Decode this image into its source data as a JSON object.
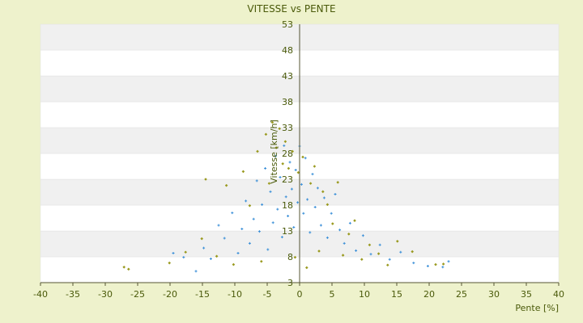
{
  "chart_data": {
    "type": "scatter",
    "title": "VITESSE vs PENTE",
    "xlabel": "Pente [%]",
    "ylabel": "Vitesse [km/h]",
    "xlim": [
      -40,
      40
    ],
    "ylim": [
      3,
      53
    ],
    "xticks": [
      -40,
      -35,
      -30,
      -25,
      -20,
      -15,
      -10,
      -5,
      0,
      5,
      10,
      15,
      20,
      25,
      30,
      35,
      40
    ],
    "yticks": [
      3,
      8,
      13,
      18,
      23,
      28,
      33,
      38,
      43,
      48,
      53
    ],
    "grid": "horizontal alternating bands",
    "colors": {
      "background": "#eef2cc",
      "band_light": "#ffffff",
      "band_dark": "#f0f0f0",
      "axis": "#555533",
      "text": "#4a5a0a",
      "series_blue": "#3a8fd8",
      "series_olive": "#9a9a20"
    },
    "series": [
      {
        "color": "#3a8fd8",
        "marker": "plus",
        "points": [
          [
            -19.5,
            8.7
          ],
          [
            -17.9,
            7.9
          ],
          [
            -16.0,
            5.2
          ],
          [
            -14.8,
            9.7
          ],
          [
            -13.7,
            7.6
          ],
          [
            -12.5,
            14.1
          ],
          [
            -11.6,
            11.6
          ],
          [
            -10.4,
            16.5
          ],
          [
            -9.5,
            8.7
          ],
          [
            -8.9,
            13.4
          ],
          [
            -8.3,
            18.8
          ],
          [
            -7.7,
            10.6
          ],
          [
            -7.1,
            15.3
          ],
          [
            -6.6,
            22.7
          ],
          [
            -6.2,
            12.9
          ],
          [
            -5.8,
            18.1
          ],
          [
            -5.3,
            25.1
          ],
          [
            -4.9,
            9.4
          ],
          [
            -4.5,
            20.6
          ],
          [
            -4.1,
            14.6
          ],
          [
            -3.7,
            27.5
          ],
          [
            -3.4,
            17.2
          ],
          [
            -3.0,
            23.4
          ],
          [
            -2.7,
            11.8
          ],
          [
            -2.4,
            29.5
          ],
          [
            -2.1,
            19.6
          ],
          [
            -1.8,
            15.9
          ],
          [
            -1.5,
            26.3
          ],
          [
            -1.2,
            21.1
          ],
          [
            -0.9,
            13.7
          ],
          [
            -0.6,
            24.8
          ],
          [
            -0.3,
            18.5
          ],
          [
            0.0,
            29.4
          ],
          [
            0.3,
            22.0
          ],
          [
            0.6,
            16.4
          ],
          [
            0.9,
            27.1
          ],
          [
            1.2,
            19.1
          ],
          [
            1.6,
            12.7
          ],
          [
            2.0,
            24.0
          ],
          [
            2.4,
            17.6
          ],
          [
            2.8,
            21.3
          ],
          [
            3.3,
            14.1
          ],
          [
            3.8,
            19.4
          ],
          [
            4.3,
            11.7
          ],
          [
            4.9,
            16.4
          ],
          [
            5.5,
            20.1
          ],
          [
            6.2,
            13.2
          ],
          [
            6.9,
            10.6
          ],
          [
            7.8,
            14.5
          ],
          [
            8.7,
            9.2
          ],
          [
            9.8,
            12.1
          ],
          [
            11.0,
            8.5
          ],
          [
            12.4,
            10.3
          ],
          [
            13.9,
            7.5
          ],
          [
            15.6,
            8.9
          ],
          [
            17.6,
            6.8
          ],
          [
            19.8,
            6.2
          ],
          [
            22.1,
            6.0
          ],
          [
            23.0,
            7.1
          ]
        ]
      },
      {
        "color": "#9a9a20",
        "marker": "diamond",
        "points": [
          [
            -27.1,
            6.0
          ],
          [
            -26.4,
            5.6
          ],
          [
            -20.1,
            6.8
          ],
          [
            -17.6,
            8.9
          ],
          [
            -15.1,
            11.5
          ],
          [
            -14.5,
            23.0
          ],
          [
            -12.8,
            8.1
          ],
          [
            -11.3,
            21.8
          ],
          [
            -10.2,
            6.5
          ],
          [
            -8.7,
            24.5
          ],
          [
            -7.7,
            17.9
          ],
          [
            -6.5,
            28.4
          ],
          [
            -5.9,
            7.1
          ],
          [
            -5.2,
            31.7
          ],
          [
            -4.7,
            22.2
          ],
          [
            -4.2,
            34.0
          ],
          [
            -3.6,
            29.1
          ],
          [
            -3.1,
            32.8
          ],
          [
            -2.6,
            26.0
          ],
          [
            -2.2,
            30.3
          ],
          [
            -1.7,
            25.1
          ],
          [
            -1.1,
            28.4
          ],
          [
            -0.7,
            7.9
          ],
          [
            -0.2,
            24.3
          ],
          [
            0.5,
            27.3
          ],
          [
            1.1,
            5.9
          ],
          [
            1.7,
            22.2
          ],
          [
            2.3,
            25.5
          ],
          [
            3.0,
            9.1
          ],
          [
            3.6,
            20.6
          ],
          [
            4.3,
            18.1
          ],
          [
            5.1,
            14.4
          ],
          [
            5.9,
            22.4
          ],
          [
            6.7,
            8.3
          ],
          [
            7.6,
            12.4
          ],
          [
            8.5,
            15.0
          ],
          [
            9.6,
            7.5
          ],
          [
            10.8,
            10.3
          ],
          [
            12.2,
            8.6
          ],
          [
            13.6,
            6.4
          ],
          [
            15.1,
            11.0
          ],
          [
            17.4,
            9.0
          ],
          [
            21.0,
            6.5
          ],
          [
            22.2,
            6.6
          ]
        ]
      }
    ]
  }
}
